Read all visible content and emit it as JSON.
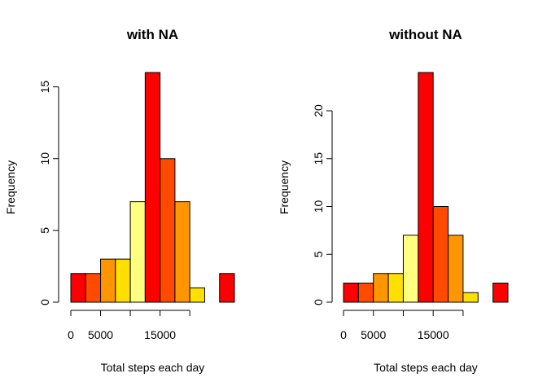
{
  "chart_data": [
    {
      "type": "bar",
      "title": "with NA",
      "xlabel": "Total steps each day",
      "ylabel": "Frequency",
      "bins": [
        {
          "from": 0,
          "to": 2500,
          "count": 2
        },
        {
          "from": 2500,
          "to": 5000,
          "count": 2
        },
        {
          "from": 5000,
          "to": 7500,
          "count": 3
        },
        {
          "from": 7500,
          "to": 10000,
          "count": 3
        },
        {
          "from": 10000,
          "to": 12500,
          "count": 7
        },
        {
          "from": 12500,
          "to": 15000,
          "count": 16
        },
        {
          "from": 15000,
          "to": 17500,
          "count": 10
        },
        {
          "from": 17500,
          "to": 20000,
          "count": 7
        },
        {
          "from": 20000,
          "to": 22500,
          "count": 1
        },
        {
          "from": 22500,
          "to": 25000,
          "count": 0
        },
        {
          "from": 25000,
          "to": 27500,
          "count": 2
        }
      ],
      "xlim": [
        0,
        27500
      ],
      "ylim": [
        0,
        16
      ],
      "x_ticks": [
        0,
        5000,
        10000,
        15000,
        20000
      ],
      "x_tick_labels": [
        "0",
        "5000",
        "",
        "15000",
        ""
      ],
      "y_ticks": [
        0,
        5,
        10,
        15
      ],
      "y_tick_labels": [
        "0",
        "5",
        "10",
        "15"
      ]
    },
    {
      "type": "bar",
      "title": "without NA",
      "xlabel": "Total steps each day",
      "ylabel": "Frequency",
      "bins": [
        {
          "from": 0,
          "to": 2500,
          "count": 2
        },
        {
          "from": 2500,
          "to": 5000,
          "count": 2
        },
        {
          "from": 5000,
          "to": 7500,
          "count": 3
        },
        {
          "from": 7500,
          "to": 10000,
          "count": 3
        },
        {
          "from": 10000,
          "to": 12500,
          "count": 7
        },
        {
          "from": 12500,
          "to": 15000,
          "count": 24
        },
        {
          "from": 15000,
          "to": 17500,
          "count": 10
        },
        {
          "from": 17500,
          "to": 20000,
          "count": 7
        },
        {
          "from": 20000,
          "to": 22500,
          "count": 1
        },
        {
          "from": 22500,
          "to": 25000,
          "count": 0
        },
        {
          "from": 25000,
          "to": 27500,
          "count": 2
        }
      ],
      "xlim": [
        0,
        27500
      ],
      "ylim": [
        0,
        24
      ],
      "x_ticks": [
        0,
        5000,
        10000,
        15000,
        20000
      ],
      "x_tick_labels": [
        "0",
        "5000",
        "",
        "15000",
        ""
      ],
      "y_ticks": [
        0,
        5,
        10,
        15,
        20
      ],
      "y_tick_labels": [
        "0",
        "5",
        "10",
        "15",
        "20"
      ]
    }
  ],
  "colors": {
    "bin_colors": [
      "#FF0000",
      "#FF4A00",
      "#FF9500",
      "#FFDF00",
      "#FFFF80",
      "#FF0000",
      "#FF4A00",
      "#FF9500",
      "#FFDF00",
      "#FFFF80",
      "#FF0000"
    ]
  }
}
